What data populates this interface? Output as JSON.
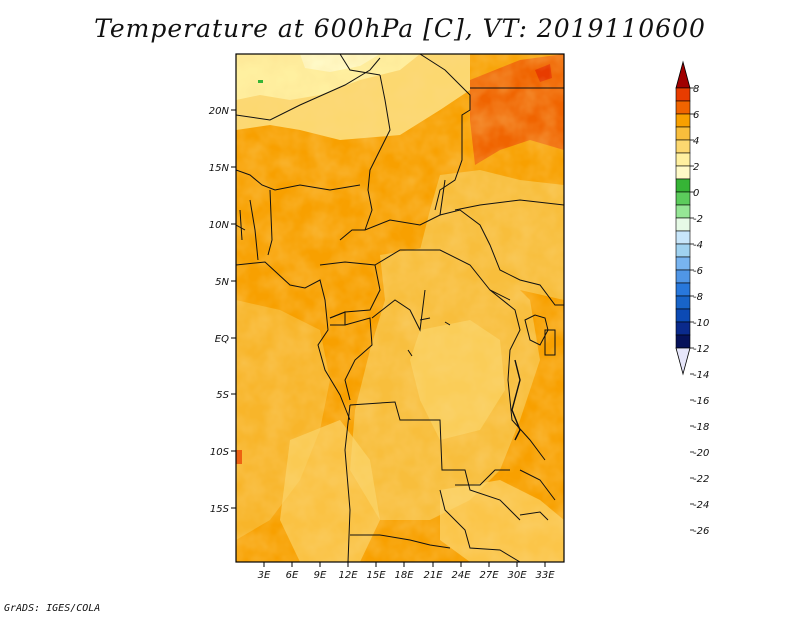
{
  "title": "Temperature at 600hPa [C], VT: 2019110600",
  "credit": "GrADS: IGES/COLA",
  "map": {
    "lat_labels": [
      "20N",
      "15N",
      "10N",
      "5N",
      "EQ",
      "5S",
      "10S",
      "15S"
    ],
    "lon_labels": [
      "3E",
      "6E",
      "9E",
      "12E",
      "15E",
      "18E",
      "21E",
      "24E",
      "27E",
      "30E",
      "33E"
    ]
  },
  "legend": {
    "labels": [
      "8",
      "6",
      "4",
      "2",
      "0",
      "-2",
      "-4",
      "-6",
      "-8",
      "-10",
      "-12",
      "-14",
      "-16",
      "-18",
      "-20",
      "-22",
      "-24",
      "-26"
    ],
    "colors": [
      "#a00000",
      "#e83c00",
      "#f06400",
      "#f8a000",
      "#f8be3c",
      "#fcd870",
      "#fff0a0",
      "#fffac8",
      "#36b436",
      "#5ccc5c",
      "#96e696",
      "#e6fae6",
      "#c8e6fa",
      "#a0d2f0",
      "#78b4f0",
      "#5096e6",
      "#2878dc",
      "#1864c8",
      "#0c4ab4",
      "#0a2a8c",
      "#06125a",
      "#e6e6fa"
    ]
  }
}
